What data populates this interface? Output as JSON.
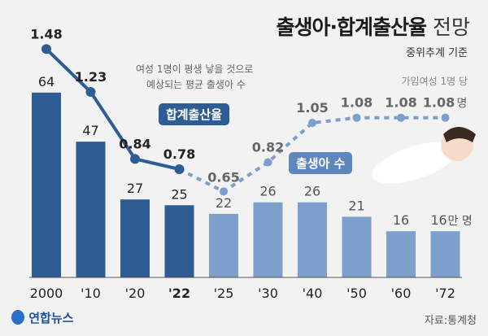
{
  "header": {
    "title_bold": "출생아·합계출산율",
    "title_light": "전망",
    "subtitle": "중위추계 기준"
  },
  "annotations": {
    "tfr_note_1": "여성 1명이 평생 낳을 것으로",
    "tfr_note_2": "예상되는 평균 출생아 수",
    "tfr_unit_note": "가임여성 1명 당",
    "tfr_unit": "명",
    "births_unit": "만 명"
  },
  "footer": {
    "logo": "연합뉴스",
    "source": "자료:통계청"
  },
  "colors": {
    "actual": "#2e5c95",
    "projected": "#7d9fcc",
    "background": "#f2f2f2"
  },
  "chart_data": {
    "type": "bar+line",
    "categories": [
      "2000",
      "'10",
      "'20",
      "'22",
      "'25",
      "'30",
      "'40",
      "'50",
      "'60",
      "'72"
    ],
    "series": [
      {
        "name": "출생아 수",
        "type": "bar",
        "unit": "만 명",
        "values": [
          64,
          47,
          27,
          25,
          22,
          26,
          26,
          21,
          16,
          16
        ]
      },
      {
        "name": "합계출산율",
        "type": "line",
        "unit": "명",
        "values": [
          1.48,
          1.23,
          0.84,
          0.78,
          0.65,
          0.82,
          1.05,
          1.08,
          1.08,
          1.08
        ]
      }
    ],
    "projection_start_index": 4,
    "grid": false
  }
}
